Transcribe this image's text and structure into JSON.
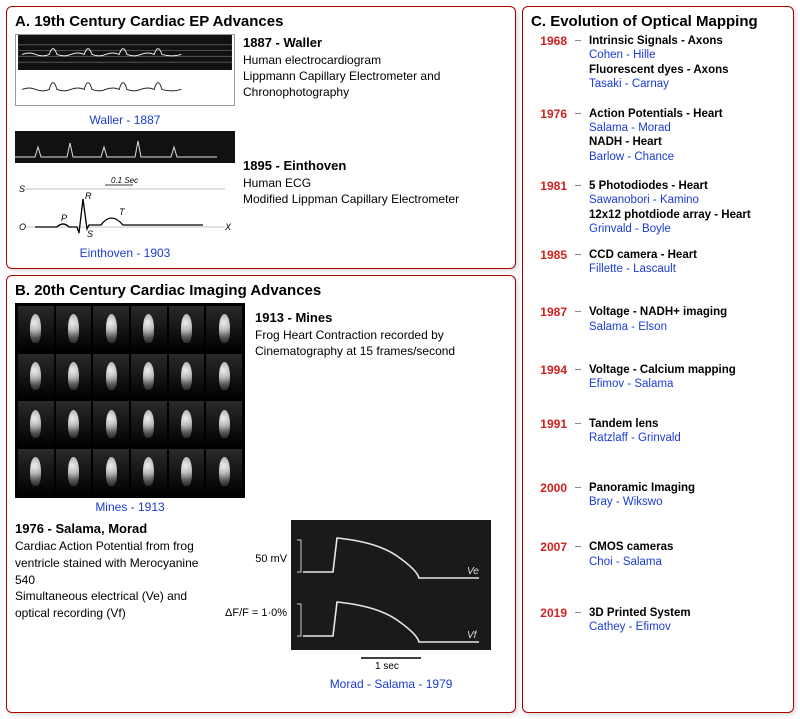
{
  "panelA": {
    "letter": "A",
    "title": "19th Century Cardiac EP Advances",
    "waller": {
      "heading": "1887 - Waller",
      "line1": "Human electrocardiogram",
      "line2": "Lippmann Capillary Electrometer and Chronophotography",
      "caption": "Waller - 1887"
    },
    "einthoven": {
      "heading": "1895 - Einthoven",
      "line1": "Human ECG",
      "line2": "Modified Lippman Capillary Electrometer",
      "caption": "Einthoven - 1903"
    }
  },
  "panelB": {
    "letter": "B",
    "title": "20th Century Cardiac Imaging Advances",
    "mines": {
      "heading": "1913 - Mines",
      "line1": "Frog Heart Contraction recorded by Cinematography at 15 frames/second",
      "caption": "Mines - 1913"
    },
    "salama": {
      "heading": "1976 - Salama, Morad",
      "line1": "Cardiac Action Potential from frog ventricle stained with Merocyanine 540",
      "line2": "Simultaneous electrical (Ve) and optical recording (Vf)",
      "vlabel1": "50 mV",
      "vlabel2": "ΔF/F = 1·0%",
      "ve": "Ve",
      "vf": "Vf",
      "timescale": "1 sec",
      "caption": "Morad - Salama - 1979"
    }
  },
  "panelC": {
    "letter": "C",
    "title": "Evolution of Optical Mapping",
    "items": [
      {
        "year": "1968",
        "lines": [
          {
            "t": "Intrinsic Signals - Axons",
            "b": true
          },
          {
            "t": "Cohen - Hille",
            "blue": true
          },
          {
            "t": "Fluorescent dyes - Axons",
            "b": true
          },
          {
            "t": "Tasaki - Carnay",
            "blue": true
          }
        ]
      },
      {
        "year": "1976",
        "lines": [
          {
            "t": "Action Potentials - Heart",
            "b": true
          },
          {
            "t": "Salama - Morad",
            "blue": true
          },
          {
            "t": "NADH - Heart",
            "b": true
          },
          {
            "t": "Barlow - Chance",
            "blue": true
          }
        ]
      },
      {
        "year": "1981",
        "lines": [
          {
            "t": "5 Photodiodes - Heart",
            "b": true
          },
          {
            "t": "Sawanobori - Kamino",
            "blue": true
          },
          {
            "t": "12x12 photdiode array - Heart",
            "b": true
          },
          {
            "t": "Grinvald - Boyle",
            "blue": true
          }
        ]
      },
      {
        "year": "1985",
        "lines": [
          {
            "t": "CCD camera - Heart",
            "b": true
          },
          {
            "t": "Fillette - Lascault",
            "blue": true
          }
        ]
      },
      {
        "year": "1987",
        "lines": [
          {
            "t": "Voltage - NADH+ imaging",
            "b": true
          },
          {
            "t": "Salama - Elson",
            "blue": true
          }
        ]
      },
      {
        "year": "1994",
        "lines": [
          {
            "t": "Voltage - Calcium mapping",
            "b": true
          },
          {
            "t": "Efimov - Salama",
            "blue": true
          }
        ]
      },
      {
        "year": "1991",
        "lines": [
          {
            "t": "Tandem lens",
            "b": true
          },
          {
            "t": "Ratzlaff - Grinvald",
            "blue": true
          }
        ]
      },
      {
        "year": "2000",
        "lines": [
          {
            "t": "Panoramic Imaging",
            "b": true
          },
          {
            "t": "Bray - Wikswo",
            "blue": true
          }
        ]
      },
      {
        "year": "2007",
        "lines": [
          {
            "t": "CMOS cameras",
            "b": true
          },
          {
            "t": "Choi - Salama",
            "blue": true
          }
        ]
      },
      {
        "year": "2019",
        "lines": [
          {
            "t": "3D Printed System",
            "b": true
          },
          {
            "t": "Cathey - Efimov",
            "blue": true
          }
        ]
      }
    ],
    "gaps": [
      8,
      8,
      4,
      22,
      22,
      18,
      28,
      24,
      30,
      0
    ]
  },
  "colors": {
    "border": "#b00000",
    "year": "#d02020",
    "link": "#1a3bd6"
  }
}
